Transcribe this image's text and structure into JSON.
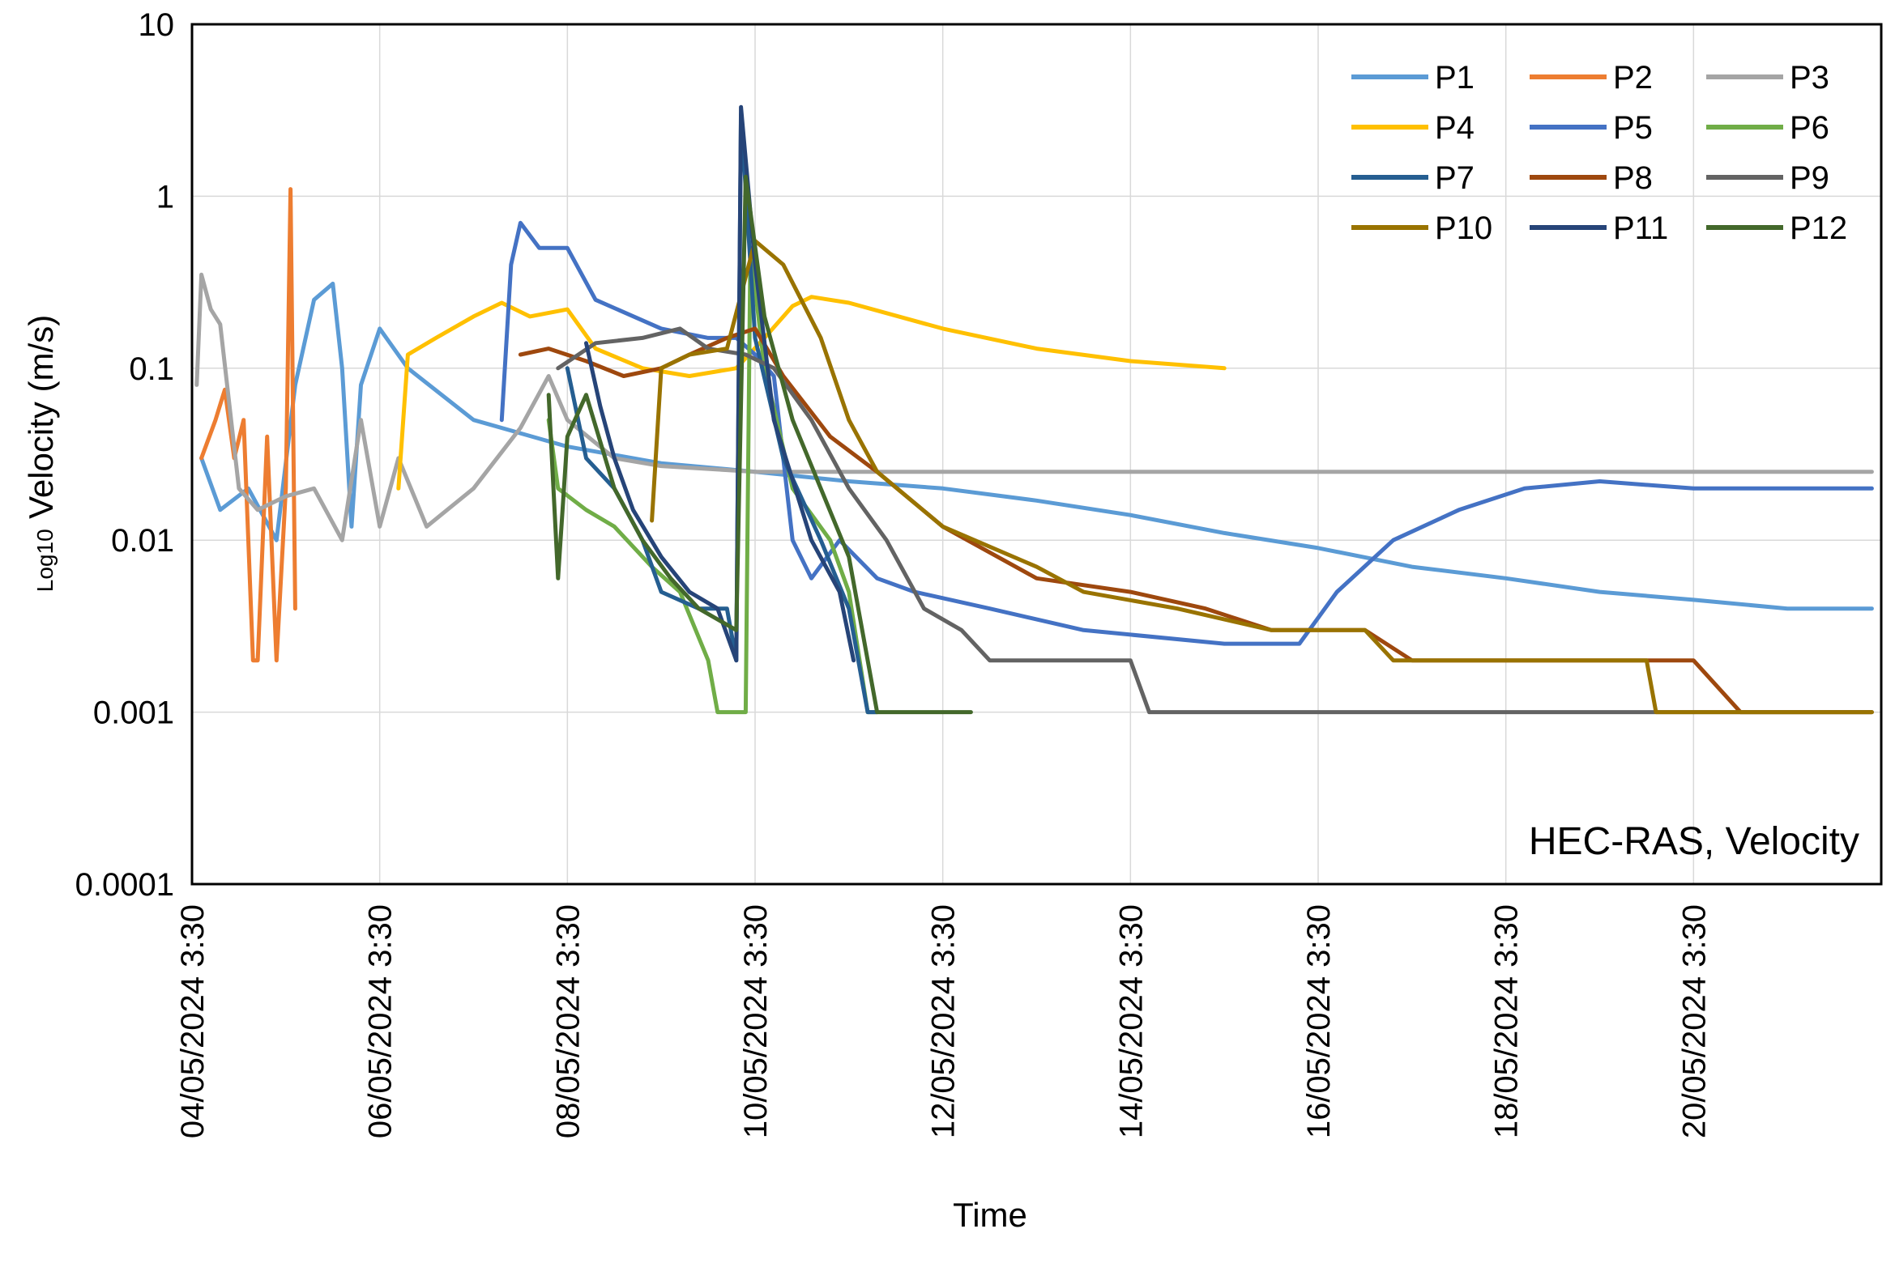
{
  "chart_data": {
    "type": "line",
    "title": "",
    "annotation": "HEC-RAS, Velocity",
    "xlabel": "Time",
    "ylabel_prefix": "Log10",
    "ylabel": "Velocity (m/s)",
    "y_scale": "log",
    "ylim": [
      0.0001,
      10
    ],
    "y_ticks": [
      "10",
      "1",
      "0.1",
      "0.01",
      "0.001",
      "0.0001"
    ],
    "x_ticks": [
      "04/05/2024 3:30",
      "06/05/2024 3:30",
      "08/05/2024 3:30",
      "10/05/2024 3:30",
      "12/05/2024 3:30",
      "14/05/2024 3:30",
      "16/05/2024 3:30",
      "18/05/2024 3:30",
      "20/05/2024 3:30"
    ],
    "grid": true,
    "legend_position": "top-right",
    "series": [
      {
        "name": "P1",
        "color": "#5B9BD5",
        "points": [
          [
            0.1,
            0.03
          ],
          [
            0.3,
            0.015
          ],
          [
            0.6,
            0.02
          ],
          [
            0.9,
            0.01
          ],
          [
            1.1,
            0.08
          ],
          [
            1.3,
            0.25
          ],
          [
            1.5,
            0.31
          ],
          [
            1.6,
            0.1
          ],
          [
            1.7,
            0.012
          ],
          [
            1.8,
            0.08
          ],
          [
            2.0,
            0.17
          ],
          [
            2.3,
            0.1
          ],
          [
            3.0,
            0.05
          ],
          [
            4.0,
            0.035
          ],
          [
            5.0,
            0.028
          ],
          [
            6.0,
            0.025
          ],
          [
            7.0,
            0.022
          ],
          [
            8.0,
            0.02
          ],
          [
            9.0,
            0.017
          ],
          [
            10.0,
            0.014
          ],
          [
            11.0,
            0.011
          ],
          [
            12.0,
            0.009
          ],
          [
            13.0,
            0.007
          ],
          [
            14.0,
            0.006
          ],
          [
            15.0,
            0.005
          ],
          [
            16.0,
            0.0045
          ],
          [
            17.0,
            0.004
          ],
          [
            17.9,
            0.004
          ]
        ]
      },
      {
        "name": "P2",
        "color": "#ED7D31",
        "points": [
          [
            0.1,
            0.03
          ],
          [
            0.25,
            0.05
          ],
          [
            0.35,
            0.075
          ],
          [
            0.45,
            0.03
          ],
          [
            0.55,
            0.05
          ],
          [
            0.65,
            0.002
          ],
          [
            0.7,
            0.002
          ],
          [
            0.8,
            0.04
          ],
          [
            0.9,
            0.002
          ],
          [
            1.0,
            0.02
          ],
          [
            1.05,
            1.1
          ],
          [
            1.1,
            0.004
          ]
        ]
      },
      {
        "name": "P3",
        "color": "#A5A5A5",
        "points": [
          [
            0.05,
            0.08
          ],
          [
            0.1,
            0.35
          ],
          [
            0.2,
            0.22
          ],
          [
            0.3,
            0.18
          ],
          [
            0.5,
            0.02
          ],
          [
            0.7,
            0.015
          ],
          [
            1.0,
            0.018
          ],
          [
            1.3,
            0.02
          ],
          [
            1.6,
            0.01
          ],
          [
            1.8,
            0.05
          ],
          [
            2.0,
            0.012
          ],
          [
            2.2,
            0.03
          ],
          [
            2.5,
            0.012
          ],
          [
            3.0,
            0.02
          ],
          [
            3.5,
            0.045
          ],
          [
            3.8,
            0.09
          ],
          [
            4.0,
            0.05
          ],
          [
            4.5,
            0.03
          ],
          [
            5.0,
            0.027
          ],
          [
            6.0,
            0.025
          ],
          [
            8.0,
            0.025
          ],
          [
            12.0,
            0.025
          ],
          [
            17.9,
            0.025
          ]
        ]
      },
      {
        "name": "P4",
        "color": "#FFC000",
        "points": [
          [
            2.2,
            0.02
          ],
          [
            2.3,
            0.12
          ],
          [
            2.6,
            0.15
          ],
          [
            3.0,
            0.2
          ],
          [
            3.3,
            0.24
          ],
          [
            3.6,
            0.2
          ],
          [
            4.0,
            0.22
          ],
          [
            4.3,
            0.13
          ],
          [
            4.8,
            0.1
          ],
          [
            5.3,
            0.09
          ],
          [
            5.8,
            0.1
          ],
          [
            6.1,
            0.15
          ],
          [
            6.4,
            0.23
          ],
          [
            6.6,
            0.26
          ],
          [
            7.0,
            0.24
          ],
          [
            8.0,
            0.17
          ],
          [
            9.0,
            0.13
          ],
          [
            10.0,
            0.11
          ],
          [
            11.0,
            0.1
          ]
        ]
      },
      {
        "name": "P5",
        "color": "#4472C4",
        "points": [
          [
            3.3,
            0.05
          ],
          [
            3.4,
            0.4
          ],
          [
            3.5,
            0.7
          ],
          [
            3.7,
            0.5
          ],
          [
            4.0,
            0.5
          ],
          [
            4.3,
            0.25
          ],
          [
            5.0,
            0.17
          ],
          [
            5.5,
            0.15
          ],
          [
            5.8,
            0.15
          ],
          [
            6.0,
            0.12
          ],
          [
            6.2,
            0.09
          ],
          [
            6.4,
            0.01
          ],
          [
            6.6,
            0.006
          ],
          [
            6.9,
            0.01
          ],
          [
            7.3,
            0.006
          ],
          [
            7.7,
            0.005
          ],
          [
            8.5,
            0.004
          ],
          [
            9.5,
            0.003
          ],
          [
            11.0,
            0.0025
          ],
          [
            11.8,
            0.0025
          ],
          [
            12.2,
            0.005
          ],
          [
            12.8,
            0.01
          ],
          [
            13.5,
            0.015
          ],
          [
            14.2,
            0.02
          ],
          [
            15.0,
            0.022
          ],
          [
            16.0,
            0.02
          ],
          [
            17.9,
            0.02
          ]
        ]
      },
      {
        "name": "P6",
        "color": "#70AD47",
        "points": [
          [
            3.8,
            0.05
          ],
          [
            3.9,
            0.02
          ],
          [
            4.2,
            0.015
          ],
          [
            4.5,
            0.012
          ],
          [
            4.9,
            0.007
          ],
          [
            5.2,
            0.005
          ],
          [
            5.5,
            0.002
          ],
          [
            5.6,
            0.001
          ],
          [
            5.9,
            0.001
          ],
          [
            5.95,
            0.5
          ],
          [
            6.1,
            0.1
          ],
          [
            6.4,
            0.02
          ],
          [
            6.8,
            0.01
          ],
          [
            7.0,
            0.005
          ],
          [
            7.2,
            0.001
          ],
          [
            7.3,
            0.001
          ]
        ]
      },
      {
        "name": "P7",
        "color": "#255E91",
        "points": [
          [
            4.0,
            0.1
          ],
          [
            4.2,
            0.03
          ],
          [
            4.5,
            0.02
          ],
          [
            4.8,
            0.01
          ],
          [
            5.0,
            0.005
          ],
          [
            5.4,
            0.004
          ],
          [
            5.7,
            0.004
          ],
          [
            5.8,
            0.002
          ],
          [
            5.85,
            3.0
          ],
          [
            6.0,
            0.15
          ],
          [
            6.3,
            0.03
          ],
          [
            6.7,
            0.01
          ],
          [
            7.0,
            0.004
          ],
          [
            7.2,
            0.001
          ],
          [
            7.3,
            0.001
          ]
        ]
      },
      {
        "name": "P8",
        "color": "#9E480E",
        "points": [
          [
            3.5,
            0.12
          ],
          [
            3.8,
            0.13
          ],
          [
            4.2,
            0.11
          ],
          [
            4.6,
            0.09
          ],
          [
            5.0,
            0.1
          ],
          [
            5.3,
            0.12
          ],
          [
            5.7,
            0.15
          ],
          [
            6.0,
            0.17
          ],
          [
            6.3,
            0.09
          ],
          [
            6.8,
            0.04
          ],
          [
            7.3,
            0.025
          ],
          [
            8.0,
            0.012
          ],
          [
            9.0,
            0.006
          ],
          [
            10.0,
            0.005
          ],
          [
            10.8,
            0.004
          ],
          [
            11.5,
            0.003
          ],
          [
            12.5,
            0.003
          ],
          [
            13.0,
            0.002
          ],
          [
            14.0,
            0.002
          ],
          [
            15.0,
            0.002
          ],
          [
            16.0,
            0.002
          ],
          [
            16.5,
            0.001
          ],
          [
            17.9,
            0.001
          ]
        ]
      },
      {
        "name": "P9",
        "color": "#636363",
        "points": [
          [
            3.9,
            0.1
          ],
          [
            4.3,
            0.14
          ],
          [
            4.8,
            0.15
          ],
          [
            5.2,
            0.17
          ],
          [
            5.5,
            0.13
          ],
          [
            5.9,
            0.12
          ],
          [
            6.2,
            0.1
          ],
          [
            6.6,
            0.05
          ],
          [
            7.0,
            0.02
          ],
          [
            7.4,
            0.01
          ],
          [
            7.8,
            0.004
          ],
          [
            8.2,
            0.003
          ],
          [
            8.5,
            0.002
          ],
          [
            9.5,
            0.002
          ],
          [
            10.0,
            0.002
          ],
          [
            10.2,
            0.001
          ],
          [
            11.0,
            0.001
          ],
          [
            17.9,
            0.001
          ]
        ]
      },
      {
        "name": "P10",
        "color": "#997300",
        "points": [
          [
            4.9,
            0.013
          ],
          [
            5.0,
            0.1
          ],
          [
            5.3,
            0.12
          ],
          [
            5.7,
            0.13
          ],
          [
            6.0,
            0.55
          ],
          [
            6.3,
            0.4
          ],
          [
            6.7,
            0.15
          ],
          [
            7.0,
            0.05
          ],
          [
            7.3,
            0.025
          ],
          [
            8.0,
            0.012
          ],
          [
            9.0,
            0.007
          ],
          [
            9.5,
            0.005
          ],
          [
            10.5,
            0.004
          ],
          [
            11.5,
            0.003
          ],
          [
            12.5,
            0.003
          ],
          [
            12.8,
            0.002
          ],
          [
            14.0,
            0.002
          ],
          [
            15.5,
            0.002
          ],
          [
            15.6,
            0.001
          ],
          [
            17.9,
            0.001
          ]
        ]
      },
      {
        "name": "P11",
        "color": "#264478",
        "points": [
          [
            4.2,
            0.14
          ],
          [
            4.35,
            0.06
          ],
          [
            4.5,
            0.03
          ],
          [
            4.7,
            0.015
          ],
          [
            5.0,
            0.008
          ],
          [
            5.3,
            0.005
          ],
          [
            5.6,
            0.004
          ],
          [
            5.8,
            0.002
          ],
          [
            5.85,
            3.3
          ],
          [
            6.0,
            0.4
          ],
          [
            6.2,
            0.05
          ],
          [
            6.6,
            0.01
          ],
          [
            6.9,
            0.005
          ],
          [
            7.05,
            0.002
          ]
        ]
      },
      {
        "name": "P12",
        "color": "#43682B",
        "points": [
          [
            3.8,
            0.07
          ],
          [
            3.9,
            0.006
          ],
          [
            4.0,
            0.04
          ],
          [
            4.2,
            0.07
          ],
          [
            4.5,
            0.02
          ],
          [
            4.8,
            0.01
          ],
          [
            5.1,
            0.006
          ],
          [
            5.4,
            0.004
          ],
          [
            5.8,
            0.003
          ],
          [
            5.9,
            1.3
          ],
          [
            6.1,
            0.2
          ],
          [
            6.4,
            0.05
          ],
          [
            6.7,
            0.02
          ],
          [
            7.0,
            0.008
          ],
          [
            7.3,
            0.001
          ],
          [
            8.3,
            0.001
          ]
        ]
      }
    ]
  }
}
